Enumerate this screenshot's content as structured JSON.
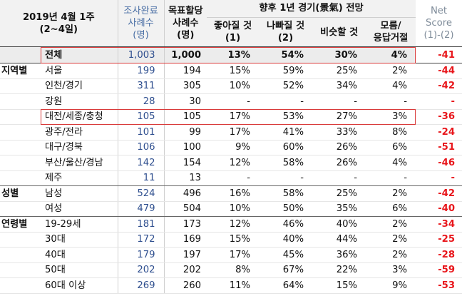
{
  "header": {
    "date_line1": "2019년 4월 1주",
    "date_line2": "(2~4일)",
    "respondents_line1": "조사완료",
    "respondents_line2": "사례수",
    "respondents_line3": "(명)",
    "target_line1": "목표할당",
    "target_line2": "사례수",
    "target_line3": "(명)",
    "outlook_title": "향후 1년 경기(景氣) 전망",
    "good_line1": "좋아질 것",
    "good_line2": "(1)",
    "bad_line1": "나빠질 것",
    "bad_line2": "(2)",
    "same": "비슷할 것",
    "dk_line1": "모름/",
    "dk_line2": "응답거절",
    "net_line1": "Net",
    "net_line2": "Score",
    "net_line3": "(1)-(2)"
  },
  "rows": [
    {
      "group": "",
      "label": "전체",
      "resp": "1,003",
      "target": "1,000",
      "good": "13%",
      "bad": "54%",
      "same": "30%",
      "dk": "4%",
      "net": "-41"
    },
    {
      "group": "지역별",
      "label": "서울",
      "resp": "199",
      "target": "194",
      "good": "15%",
      "bad": "59%",
      "same": "25%",
      "dk": "2%",
      "net": "-44"
    },
    {
      "group": "",
      "label": "인천/경기",
      "resp": "311",
      "target": "305",
      "good": "10%",
      "bad": "52%",
      "same": "34%",
      "dk": "4%",
      "net": "-42"
    },
    {
      "group": "",
      "label": "강원",
      "resp": "28",
      "target": "30",
      "good": "-",
      "bad": "-",
      "same": "-",
      "dk": "-",
      "net": "-"
    },
    {
      "group": "",
      "label": "대전/세종/충청",
      "resp": "105",
      "target": "105",
      "good": "17%",
      "bad": "53%",
      "same": "27%",
      "dk": "3%",
      "net": "-36"
    },
    {
      "group": "",
      "label": "광주/전라",
      "resp": "101",
      "target": "99",
      "good": "17%",
      "bad": "41%",
      "same": "33%",
      "dk": "8%",
      "net": "-24"
    },
    {
      "group": "",
      "label": "대구/경북",
      "resp": "106",
      "target": "100",
      "good": "9%",
      "bad": "60%",
      "same": "26%",
      "dk": "6%",
      "net": "-51"
    },
    {
      "group": "",
      "label": "부산/울산/경남",
      "resp": "142",
      "target": "154",
      "good": "12%",
      "bad": "58%",
      "same": "26%",
      "dk": "4%",
      "net": "-46"
    },
    {
      "group": "",
      "label": "제주",
      "resp": "11",
      "target": "13",
      "good": "-",
      "bad": "-",
      "same": "-",
      "dk": "-",
      "net": "-"
    },
    {
      "group": "성별",
      "label": "남성",
      "resp": "524",
      "target": "496",
      "good": "16%",
      "bad": "58%",
      "same": "25%",
      "dk": "2%",
      "net": "-42"
    },
    {
      "group": "",
      "label": "여성",
      "resp": "479",
      "target": "504",
      "good": "10%",
      "bad": "50%",
      "same": "35%",
      "dk": "6%",
      "net": "-40"
    },
    {
      "group": "연령별",
      "label": "19-29세",
      "resp": "181",
      "target": "173",
      "good": "12%",
      "bad": "46%",
      "same": "40%",
      "dk": "2%",
      "net": "-34"
    },
    {
      "group": "",
      "label": "30대",
      "resp": "172",
      "target": "169",
      "good": "15%",
      "bad": "40%",
      "same": "44%",
      "dk": "2%",
      "net": "-25"
    },
    {
      "group": "",
      "label": "40대",
      "resp": "179",
      "target": "197",
      "good": "17%",
      "bad": "45%",
      "same": "36%",
      "dk": "2%",
      "net": "-28"
    },
    {
      "group": "",
      "label": "50대",
      "resp": "202",
      "target": "202",
      "good": "8%",
      "bad": "67%",
      "same": "22%",
      "dk": "3%",
      "net": "-59"
    },
    {
      "group": "",
      "label": "60대 이상",
      "resp": "269",
      "target": "260",
      "good": "11%",
      "bad": "64%",
      "same": "15%",
      "dk": "9%",
      "net": "-53"
    }
  ],
  "colors": {
    "net_score": "#e8161b",
    "respondents": "#2f4f8f",
    "highlight_box": "#d93a3a",
    "header_bg": "#f2f2f2"
  }
}
